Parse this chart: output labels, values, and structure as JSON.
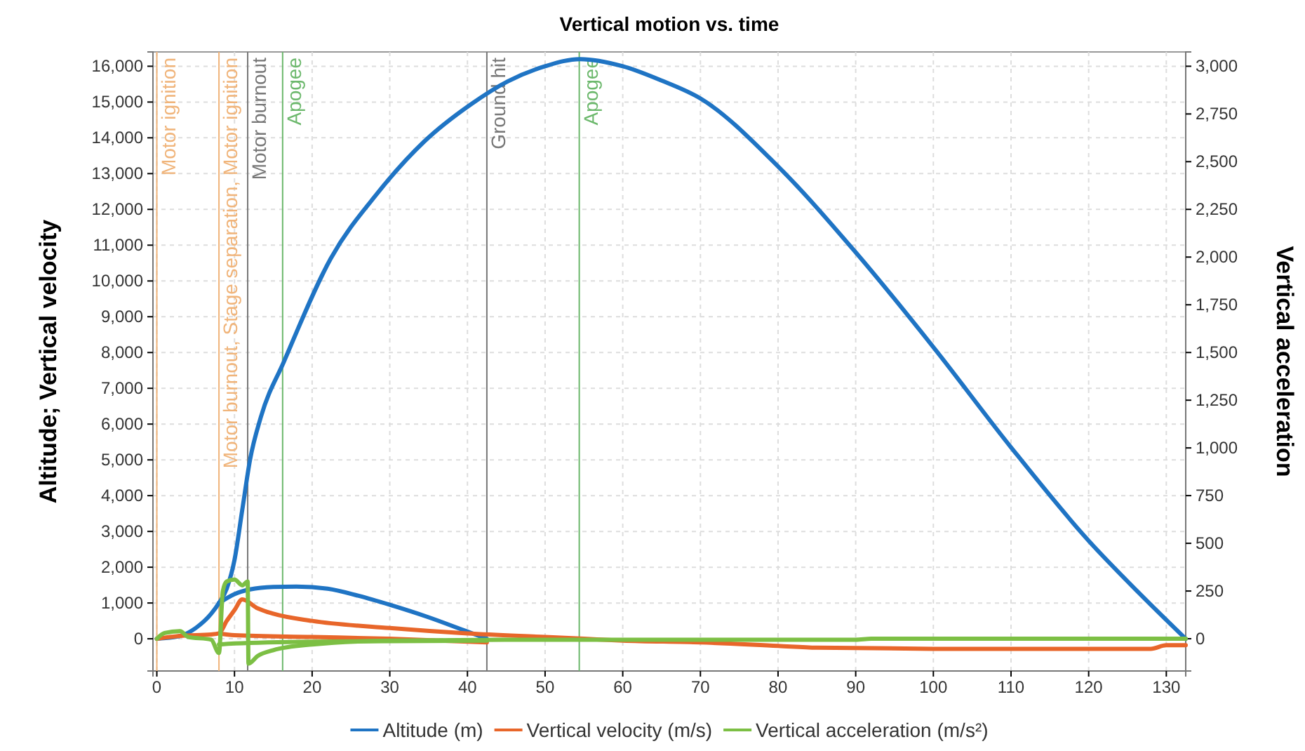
{
  "chart_data": {
    "type": "line",
    "title": "Vertical motion vs. time",
    "ylabel": "Altitude; Vertical velocity",
    "y2label": "Vertical acceleration",
    "xlim": [
      -0.5,
      132.5
    ],
    "xticks": [
      0,
      10,
      20,
      30,
      40,
      50,
      60,
      70,
      80,
      90,
      100,
      110,
      120,
      130
    ],
    "ylim": [
      -900,
      16400
    ],
    "yticks": [
      0,
      {
        "value": 1000,
        "label": "1,000"
      },
      {
        "value": 2000,
        "label": "2,000"
      },
      {
        "value": 3000,
        "label": "3,000"
      },
      {
        "value": 4000,
        "label": "4,000"
      },
      {
        "value": 5000,
        "label": "5,000"
      },
      {
        "value": 6000,
        "label": "6,000"
      },
      {
        "value": 7000,
        "label": "7,000"
      },
      {
        "value": 8000,
        "label": "8,000"
      },
      {
        "value": 9000,
        "label": "9,000"
      },
      {
        "value": 10000,
        "label": "10,000"
      },
      {
        "value": 11000,
        "label": "11,000"
      },
      {
        "value": 12000,
        "label": "12,000"
      },
      {
        "value": 13000,
        "label": "13,000"
      },
      {
        "value": 14000,
        "label": "14,000"
      },
      {
        "value": 15000,
        "label": "15,000"
      },
      {
        "value": 16000,
        "label": "16,000"
      }
    ],
    "y2lim": [
      -169,
      3075
    ],
    "y2ticks": [
      0,
      250,
      500,
      750,
      {
        "value": 1000,
        "label": "1,000"
      },
      {
        "value": 1250,
        "label": "1,250"
      },
      {
        "value": 1500,
        "label": "1,500"
      },
      {
        "value": 1750,
        "label": "1,750"
      },
      {
        "value": 2000,
        "label": "2,000"
      },
      {
        "value": 2250,
        "label": "2,250"
      },
      {
        "value": 2500,
        "label": "2,500"
      },
      {
        "value": 2750,
        "label": "2,750"
      },
      {
        "value": 3000,
        "label": "3,000"
      }
    ],
    "grid": true,
    "legend": "bottom",
    "line_style": "solid",
    "marker": "none",
    "ref_lines": [
      {
        "axis": "x",
        "value": 0,
        "label": "Motor ignition",
        "color": "#f0b47a"
      },
      {
        "axis": "x",
        "value": 8,
        "label": "Motor burnout, Stage separation, Motor ignition",
        "color": "#f0b47a"
      },
      {
        "axis": "x",
        "value": 11.7,
        "label": "Motor burnout",
        "color": "#777777"
      },
      {
        "axis": "x",
        "value": 16.2,
        "label": "Apogee",
        "color": "#6cb86c"
      },
      {
        "axis": "x",
        "value": 42.5,
        "label": "Ground hit",
        "color": "#777777"
      },
      {
        "axis": "x",
        "value": 54.4,
        "label": "Apogee",
        "color": "#6cb86c"
      }
    ],
    "series": [
      {
        "name": "Altitude (m)",
        "color": "#1f74c4",
        "x": [
          0,
          3,
          5,
          7,
          8,
          9,
          10,
          11,
          12,
          13.4,
          16.4,
          22.4,
          28.4,
          34.4,
          40.4,
          45.2,
          50,
          54.5,
          60,
          65,
          70,
          80,
          90,
          100,
          110,
          120,
          126.4,
          132.5
        ],
        "values": [
          0,
          80,
          300,
          700,
          1000,
          1400,
          2200,
          3600,
          5000,
          6200,
          7760,
          10630,
          12450,
          13890,
          14930,
          15580,
          16000,
          16200,
          16000,
          15600,
          15100,
          13200,
          10800,
          8150,
          5350,
          2740,
          1300,
          0
        ]
      },
      {
        "color": "#1f74c4",
        "x": [
          8,
          10,
          12,
          15,
          18,
          22,
          26,
          30,
          35,
          40,
          42.5
        ],
        "values": [
          1000,
          1250,
          1380,
          1450,
          1460,
          1400,
          1200,
          950,
          600,
          200,
          0
        ]
      },
      {
        "name": "Vertical velocity (m/s)",
        "color": "#e8662a",
        "x": [
          0,
          3,
          7,
          8,
          9,
          10,
          11,
          13,
          15,
          20,
          30,
          40,
          50,
          55,
          60,
          70,
          80,
          85,
          100,
          128,
          130,
          132.5
        ],
        "values": [
          0,
          80,
          120,
          150,
          500,
          800,
          1100,
          850,
          700,
          500,
          300,
          150,
          50,
          0,
          -50,
          -100,
          -200,
          -250,
          -280,
          -280,
          -180,
          -180
        ]
      },
      {
        "color": "#e8662a",
        "x": [
          8,
          10,
          20,
          30,
          42.5
        ],
        "values": [
          150,
          100,
          50,
          0,
          -100
        ]
      },
      {
        "name": "Vertical acceleration (m/s²)",
        "color": "#7cbf44",
        "axis": "y2",
        "x": [
          0,
          1,
          3,
          4,
          7,
          8,
          8.5,
          9,
          10,
          11,
          11.7,
          11.8,
          13,
          15,
          20,
          30,
          50,
          90,
          92,
          132.5
        ],
        "values": [
          0,
          30,
          40,
          10,
          -5,
          -75,
          250,
          300,
          310,
          280,
          300,
          -130,
          -90,
          -60,
          -30,
          -10,
          -5,
          -5,
          0,
          0
        ]
      },
      {
        "color": "#7cbf44",
        "axis": "y2",
        "x": [
          8,
          10,
          20,
          42.5
        ],
        "values": [
          -30,
          -25,
          -15,
          -10
        ]
      }
    ]
  }
}
